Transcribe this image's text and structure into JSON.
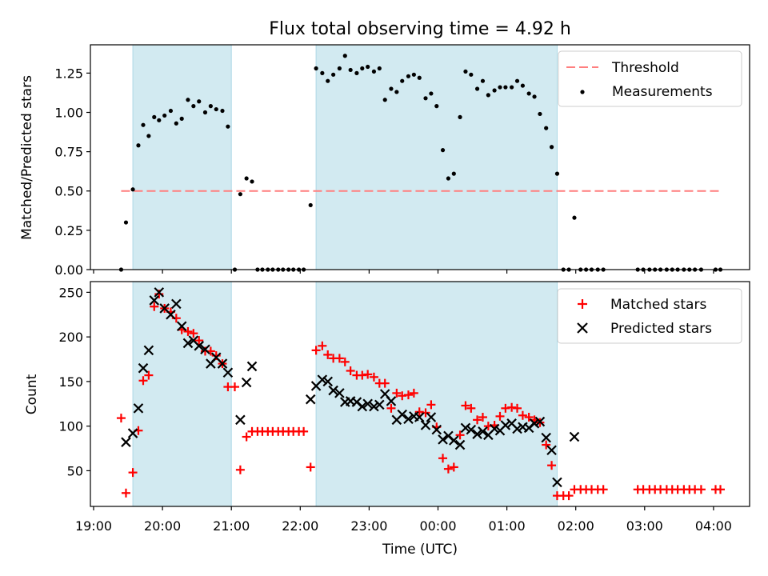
{
  "chart_data": {
    "type": "scatter",
    "title": "Flux total observing time = 4.92 h",
    "xlabel": "Time (UTC)",
    "x_ticks": [
      "19:00",
      "20:00",
      "21:00",
      "22:00",
      "23:00",
      "00:00",
      "01:00",
      "02:00",
      "03:00",
      "04:00"
    ],
    "observing_windows": [
      [
        19.57,
        21.0
      ],
      [
        22.23,
        25.73
      ]
    ],
    "top": {
      "ylabel": "Matched/Predicted stars",
      "ylim": [
        0,
        1.43
      ],
      "y_ticks": [
        "0.00",
        "0.25",
        "0.50",
        "0.75",
        "1.00",
        "1.25"
      ],
      "threshold": {
        "name": "Threshold",
        "value": 0.5,
        "x_range": [
          19.4,
          28.1
        ]
      },
      "measurements_name": "Measurements",
      "measurements": [
        [
          19.4,
          0.0
        ],
        [
          19.47,
          0.3
        ],
        [
          19.57,
          0.51
        ],
        [
          19.65,
          0.79
        ],
        [
          19.72,
          0.92
        ],
        [
          19.8,
          0.85
        ],
        [
          19.88,
          0.97
        ],
        [
          19.95,
          0.95
        ],
        [
          20.03,
          0.98
        ],
        [
          20.12,
          1.01
        ],
        [
          20.2,
          0.93
        ],
        [
          20.28,
          0.96
        ],
        [
          20.37,
          1.08
        ],
        [
          20.45,
          1.04
        ],
        [
          20.53,
          1.07
        ],
        [
          20.62,
          1.0
        ],
        [
          20.7,
          1.04
        ],
        [
          20.78,
          1.02
        ],
        [
          20.87,
          1.01
        ],
        [
          20.95,
          0.91
        ],
        [
          21.05,
          0.0
        ],
        [
          21.13,
          0.48
        ],
        [
          21.22,
          0.58
        ],
        [
          21.3,
          0.56
        ],
        [
          21.38,
          0.0
        ],
        [
          21.45,
          0.0
        ],
        [
          21.53,
          0.0
        ],
        [
          21.6,
          0.0
        ],
        [
          21.68,
          0.0
        ],
        [
          21.75,
          0.0
        ],
        [
          21.83,
          0.0
        ],
        [
          21.9,
          0.0
        ],
        [
          21.98,
          0.0
        ],
        [
          22.05,
          0.0
        ],
        [
          22.15,
          0.41
        ],
        [
          22.23,
          1.28
        ],
        [
          22.32,
          1.25
        ],
        [
          22.4,
          1.2
        ],
        [
          22.48,
          1.24
        ],
        [
          22.57,
          1.28
        ],
        [
          22.65,
          1.36
        ],
        [
          22.73,
          1.27
        ],
        [
          22.82,
          1.25
        ],
        [
          22.9,
          1.28
        ],
        [
          22.98,
          1.29
        ],
        [
          23.07,
          1.26
        ],
        [
          23.15,
          1.28
        ],
        [
          23.23,
          1.08
        ],
        [
          23.32,
          1.15
        ],
        [
          23.4,
          1.13
        ],
        [
          23.48,
          1.2
        ],
        [
          23.57,
          1.23
        ],
        [
          23.65,
          1.24
        ],
        [
          23.73,
          1.22
        ],
        [
          23.82,
          1.09
        ],
        [
          23.9,
          1.12
        ],
        [
          23.98,
          1.04
        ],
        [
          24.07,
          0.76
        ],
        [
          24.15,
          0.58
        ],
        [
          24.23,
          0.61
        ],
        [
          24.32,
          0.97
        ],
        [
          24.4,
          1.26
        ],
        [
          24.48,
          1.24
        ],
        [
          24.57,
          1.15
        ],
        [
          24.65,
          1.2
        ],
        [
          24.73,
          1.11
        ],
        [
          24.82,
          1.14
        ],
        [
          24.9,
          1.16
        ],
        [
          24.98,
          1.16
        ],
        [
          25.07,
          1.16
        ],
        [
          25.15,
          1.2
        ],
        [
          25.23,
          1.17
        ],
        [
          25.32,
          1.12
        ],
        [
          25.4,
          1.1
        ],
        [
          25.48,
          0.99
        ],
        [
          25.57,
          0.9
        ],
        [
          25.65,
          0.78
        ],
        [
          25.73,
          0.61
        ],
        [
          25.82,
          0.0
        ],
        [
          25.9,
          0.0
        ],
        [
          25.98,
          0.33
        ],
        [
          26.07,
          0.0
        ],
        [
          26.15,
          0.0
        ],
        [
          26.23,
          0.0
        ],
        [
          26.32,
          0.0
        ],
        [
          26.4,
          0.0
        ],
        [
          26.9,
          0.0
        ],
        [
          26.98,
          0.0
        ],
        [
          27.07,
          0.0
        ],
        [
          27.15,
          0.0
        ],
        [
          27.23,
          0.0
        ],
        [
          27.32,
          0.0
        ],
        [
          27.4,
          0.0
        ],
        [
          27.48,
          0.0
        ],
        [
          27.57,
          0.0
        ],
        [
          27.65,
          0.0
        ],
        [
          27.73,
          0.0
        ],
        [
          27.82,
          0.0
        ],
        [
          28.03,
          0.0
        ],
        [
          28.1,
          0.0
        ]
      ]
    },
    "bottom": {
      "ylabel": "Count",
      "ylim": [
        10,
        262
      ],
      "y_ticks": [
        "50",
        "100",
        "150",
        "200",
        "250"
      ],
      "series": [
        {
          "name": "Matched stars",
          "marker": "+",
          "color": "#ff0000",
          "points": [
            [
              19.4,
              109
            ],
            [
              19.47,
              25
            ],
            [
              19.57,
              48
            ],
            [
              19.65,
              95
            ],
            [
              19.72,
              151
            ],
            [
              19.8,
              157
            ],
            [
              19.88,
              234
            ],
            [
              19.95,
              248
            ],
            [
              20.03,
              232
            ],
            [
              20.12,
              228
            ],
            [
              20.2,
              221
            ],
            [
              20.28,
              208
            ],
            [
              20.37,
              206
            ],
            [
              20.45,
              204
            ],
            [
              20.53,
              196
            ],
            [
              20.62,
              184
            ],
            [
              20.7,
              184
            ],
            [
              20.78,
              179
            ],
            [
              20.87,
              170
            ],
            [
              20.95,
              144
            ],
            [
              21.05,
              144
            ],
            [
              21.13,
              51
            ],
            [
              21.22,
              88
            ],
            [
              21.3,
              94
            ],
            [
              21.38,
              94
            ],
            [
              21.45,
              94
            ],
            [
              21.53,
              94
            ],
            [
              21.6,
              94
            ],
            [
              21.68,
              94
            ],
            [
              21.75,
              94
            ],
            [
              21.83,
              94
            ],
            [
              21.9,
              94
            ],
            [
              21.98,
              94
            ],
            [
              22.05,
              94
            ],
            [
              22.15,
              54
            ],
            [
              22.23,
              185
            ],
            [
              22.32,
              190
            ],
            [
              22.4,
              180
            ],
            [
              22.48,
              176
            ],
            [
              22.57,
              176
            ],
            [
              22.65,
              172
            ],
            [
              22.73,
              162
            ],
            [
              22.82,
              157
            ],
            [
              22.9,
              157
            ],
            [
              22.98,
              158
            ],
            [
              23.07,
              155
            ],
            [
              23.15,
              148
            ],
            [
              23.23,
              148
            ],
            [
              23.32,
              120
            ],
            [
              23.4,
              137
            ],
            [
              23.48,
              134
            ],
            [
              23.57,
              135
            ],
            [
              23.65,
              137
            ],
            [
              23.73,
              116
            ],
            [
              23.82,
              115
            ],
            [
              23.9,
              124
            ],
            [
              23.98,
              99
            ],
            [
              24.07,
              64
            ],
            [
              24.15,
              52
            ],
            [
              24.23,
              54
            ],
            [
              24.32,
              90
            ],
            [
              24.4,
              123
            ],
            [
              24.48,
              120
            ],
            [
              24.57,
              107
            ],
            [
              24.65,
              110
            ],
            [
              24.73,
              100
            ],
            [
              24.82,
              101
            ],
            [
              24.9,
              111
            ],
            [
              24.98,
              120
            ],
            [
              25.07,
              121
            ],
            [
              25.15,
              120
            ],
            [
              25.23,
              112
            ],
            [
              25.32,
              110
            ],
            [
              25.4,
              107
            ],
            [
              25.48,
              104
            ],
            [
              25.57,
              79
            ],
            [
              25.65,
              56
            ],
            [
              25.73,
              22
            ],
            [
              25.82,
              22
            ],
            [
              25.9,
              22
            ],
            [
              25.98,
              29
            ],
            [
              26.07,
              29
            ],
            [
              26.15,
              29
            ],
            [
              26.23,
              29
            ],
            [
              26.32,
              29
            ],
            [
              26.4,
              29
            ],
            [
              26.9,
              29
            ],
            [
              26.98,
              29
            ],
            [
              27.07,
              29
            ],
            [
              27.15,
              29
            ],
            [
              27.23,
              29
            ],
            [
              27.32,
              29
            ],
            [
              27.4,
              29
            ],
            [
              27.48,
              29
            ],
            [
              27.57,
              29
            ],
            [
              27.65,
              29
            ],
            [
              27.73,
              29
            ],
            [
              27.82,
              29
            ],
            [
              28.03,
              29
            ],
            [
              28.1,
              29
            ]
          ]
        },
        {
          "name": "Predicted stars",
          "marker": "x",
          "color": "#000000",
          "points": [
            [
              19.47,
              82
            ],
            [
              19.57,
              92
            ],
            [
              19.65,
              120
            ],
            [
              19.72,
              165
            ],
            [
              19.8,
              185
            ],
            [
              19.88,
              241
            ],
            [
              19.95,
              250
            ],
            [
              20.03,
              232
            ],
            [
              20.12,
              225
            ],
            [
              20.2,
              237
            ],
            [
              20.28,
              212
            ],
            [
              20.37,
              193
            ],
            [
              20.45,
              196
            ],
            [
              20.53,
              190
            ],
            [
              20.62,
              186
            ],
            [
              20.7,
              170
            ],
            [
              20.78,
              177
            ],
            [
              20.87,
              170
            ],
            [
              20.95,
              160
            ],
            [
              21.13,
              107
            ],
            [
              21.22,
              149
            ],
            [
              21.3,
              167
            ],
            [
              22.15,
              130
            ],
            [
              22.23,
              145
            ],
            [
              22.32,
              152
            ],
            [
              22.4,
              150
            ],
            [
              22.48,
              140
            ],
            [
              22.57,
              137
            ],
            [
              22.65,
              127
            ],
            [
              22.73,
              128
            ],
            [
              22.82,
              127
            ],
            [
              22.9,
              122
            ],
            [
              22.98,
              125
            ],
            [
              23.07,
              122
            ],
            [
              23.15,
              124
            ],
            [
              23.23,
              136
            ],
            [
              23.32,
              128
            ],
            [
              23.4,
              107
            ],
            [
              23.48,
              113
            ],
            [
              23.57,
              108
            ],
            [
              23.65,
              111
            ],
            [
              23.73,
              110
            ],
            [
              23.82,
              101
            ],
            [
              23.9,
              110
            ],
            [
              23.98,
              96
            ],
            [
              24.07,
              85
            ],
            [
              24.15,
              89
            ],
            [
              24.23,
              84
            ],
            [
              24.32,
              79
            ],
            [
              24.4,
              98
            ],
            [
              24.48,
              96
            ],
            [
              24.57,
              91
            ],
            [
              24.65,
              94
            ],
            [
              24.73,
              90
            ],
            [
              24.82,
              97
            ],
            [
              24.9,
              95
            ],
            [
              24.98,
              101
            ],
            [
              25.07,
              103
            ],
            [
              25.15,
              97
            ],
            [
              25.23,
              99
            ],
            [
              25.32,
              98
            ],
            [
              25.4,
              103
            ],
            [
              25.48,
              105
            ],
            [
              25.57,
              87
            ],
            [
              25.65,
              73
            ],
            [
              25.73,
              37
            ],
            [
              25.98,
              88
            ]
          ]
        }
      ]
    },
    "colors": {
      "window": "#add8e6",
      "threshold": "#ff7f7f",
      "measurement": "#000000"
    },
    "legend_position": "top-right"
  }
}
